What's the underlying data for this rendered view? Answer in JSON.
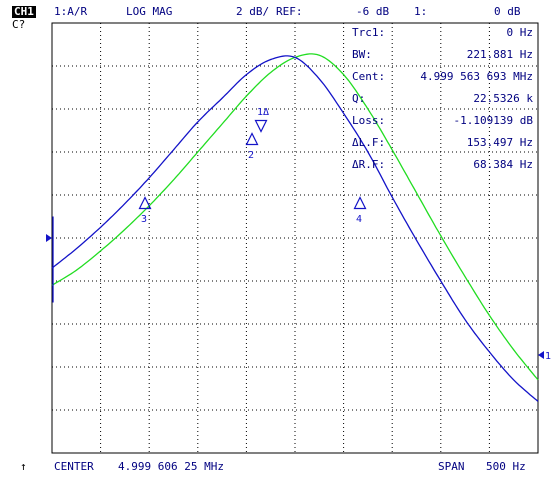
{
  "header": {
    "channel": "CH1",
    "channel_sub": "C?",
    "measurement": "1:A/R",
    "format": "LOG MAG",
    "scale": "2 dB/",
    "ref_label": "REF:",
    "ref_value": "-6 dB",
    "marker_label": "1:",
    "marker_value": "0 dB"
  },
  "marker_table": [
    {
      "label": "Trc1:",
      "value": "0 Hz"
    },
    {
      "label": "BW:",
      "value": "221.881 Hz"
    },
    {
      "label": "Cent:",
      "value": "4.999 563 693 MHz"
    },
    {
      "label": "Q:",
      "value": "22.5326 k"
    },
    {
      "label": "Loss:",
      "value": "-1.109139 dB"
    },
    {
      "label": "ΔL.F:",
      "value": "153.497 Hz"
    },
    {
      "label": "ΔR.F:",
      "value": "68.384 Hz"
    }
  ],
  "markers": {
    "m1": "1Δ",
    "m2": "2",
    "m3": "3",
    "m4": "4",
    "ref_end": "1"
  },
  "footer": {
    "center_label": "CENTER",
    "center_value": "4.999 606 25 MHz",
    "span_label": "SPAN",
    "span_value": "500 Hz",
    "up_arrow": "↑"
  },
  "colors": {
    "trace1": "#1414c8",
    "trace2": "#22dd22",
    "grid": "#000000",
    "text": "#000080"
  },
  "chart_data": {
    "type": "line",
    "x_label": "",
    "y_label": "",
    "ylim": [
      -26,
      -6
    ],
    "y_division": 2,
    "divisions_x": 10,
    "divisions_y": 10,
    "x_units": "Hz offset from center",
    "xlim": [
      -250,
      250
    ],
    "series": [
      {
        "x": [
          -250,
          -225,
          -200,
          -175,
          -150,
          -125,
          -100,
          -75,
          -50,
          -25,
          0,
          25,
          50,
          75,
          100,
          125,
          150,
          175,
          200,
          225,
          250
        ],
        "y": [
          -17.4,
          -16.5,
          -15.5,
          -14.4,
          -13.2,
          -11.9,
          -10.6,
          -9.5,
          -8.4,
          -7.7,
          -7.6,
          -8.6,
          -10.2,
          -12.0,
          -14.1,
          -16.1,
          -18.0,
          -19.8,
          -21.3,
          -22.6,
          -23.6
        ]
      },
      {
        "x": [
          -250,
          -225,
          -200,
          -175,
          -150,
          -125,
          -100,
          -75,
          -50,
          -25,
          0,
          25,
          50,
          75,
          100,
          125,
          150,
          175,
          200,
          225,
          250
        ],
        "y": [
          -18.2,
          -17.5,
          -16.6,
          -15.6,
          -14.5,
          -13.3,
          -12.0,
          -10.7,
          -9.4,
          -8.3,
          -7.6,
          -7.5,
          -8.4,
          -10.0,
          -11.9,
          -13.9,
          -15.9,
          -17.8,
          -19.6,
          -21.2,
          -22.6
        ]
      }
    ]
  }
}
